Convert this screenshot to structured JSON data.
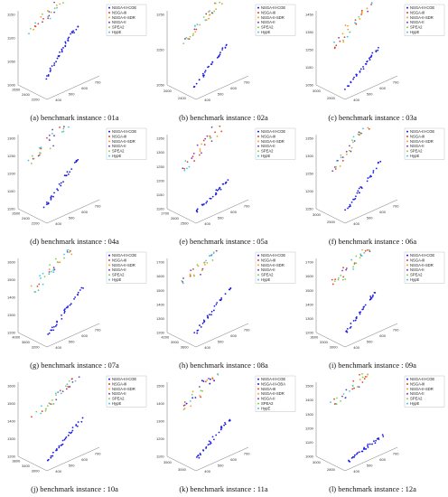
{
  "colors": {
    "NSGA-III-COE": "#1a1ae6",
    "NSGA-III-OBA": "#1a1ae6",
    "NSGA-Ⅲ": "#e8402a",
    "NSGA-II-SDR": "#f0a020",
    "NSGA-II": "#7d3fb0",
    "SPEA2": "#7fd050",
    "HypE": "#3fc8e8",
    "axis": "#777777"
  },
  "chart_data": [
    {
      "type": "scatter3d",
      "caption": "(a)  benchmark instance : 01a",
      "legend": [
        "NSGA-III-COE",
        "NSGA-Ⅲ",
        "NSGA-II-SDR",
        "NSGA-II",
        "SPEA2",
        "HypE"
      ],
      "zticks": [
        "1000",
        "1050",
        "1100",
        "1150"
      ],
      "yticks": [
        "2600",
        "2400",
        "2200"
      ],
      "xticks": [
        "400",
        "500",
        "600",
        "700"
      ],
      "zrange": [
        980,
        1170
      ],
      "yrange": [
        2100,
        2700
      ],
      "xrange": [
        380,
        720
      ],
      "front": [
        [
          430,
          2300,
          1010
        ],
        [
          470,
          2310,
          1030
        ],
        [
          520,
          2330,
          1045
        ],
        [
          560,
          2350,
          1060
        ],
        [
          600,
          2380,
          1075
        ],
        [
          640,
          2400,
          1085
        ],
        [
          680,
          2420,
          1095
        ]
      ],
      "cloud": [
        [
          420,
          2550,
          1120
        ],
        [
          480,
          2560,
          1130
        ],
        [
          540,
          2580,
          1140
        ],
        [
          600,
          2600,
          1150
        ],
        [
          660,
          2620,
          1160
        ],
        [
          700,
          2640,
          1165
        ]
      ]
    },
    {
      "type": "scatter3d",
      "caption": "(b)  benchmark instance : 02a",
      "legend": [
        "NSGA-III-COE",
        "NSGA-Ⅲ",
        "NSGA-II-SDR",
        "NSGA-II",
        "SPEA2",
        "HypE"
      ],
      "zticks": [
        "1050",
        "1150",
        "1250"
      ],
      "yticks": [
        "2600",
        "2400"
      ],
      "xticks": [
        "400",
        "500",
        "600",
        "700"
      ],
      "zrange": [
        1000,
        1300
      ],
      "yrange": [
        2300,
        2800
      ],
      "xrange": [
        380,
        720
      ],
      "front": [
        [
          420,
          2450,
          1020
        ],
        [
          470,
          2460,
          1040
        ],
        [
          520,
          2480,
          1060
        ],
        [
          570,
          2500,
          1080
        ],
        [
          620,
          2520,
          1095
        ],
        [
          680,
          2550,
          1110
        ]
      ],
      "cloud": [
        [
          420,
          2600,
          1180
        ],
        [
          480,
          2620,
          1200
        ],
        [
          540,
          2640,
          1220
        ],
        [
          600,
          2660,
          1240
        ],
        [
          660,
          2680,
          1260
        ],
        [
          710,
          2700,
          1280
        ]
      ]
    },
    {
      "type": "scatter3d",
      "caption": "(c)  benchmark instance : 03a",
      "legend": [
        "NSGA-III-COE",
        "NSGA-Ⅲ",
        "NSGA-II-SDR",
        "NSGA-II",
        "SPEA2",
        "HypE"
      ],
      "zticks": [
        "1050",
        "1150",
        "1250",
        "1350",
        "1450"
      ],
      "yticks": [
        "3000",
        "2500"
      ],
      "xticks": [
        "400",
        "500",
        "600",
        "700"
      ],
      "zrange": [
        1000,
        1480
      ],
      "yrange": [
        2300,
        3100
      ],
      "xrange": [
        380,
        720
      ],
      "front": [
        [
          420,
          2450,
          1030
        ],
        [
          470,
          2480,
          1060
        ],
        [
          520,
          2510,
          1090
        ],
        [
          570,
          2540,
          1120
        ],
        [
          620,
          2570,
          1150
        ],
        [
          680,
          2600,
          1180
        ]
      ],
      "cloud": [
        [
          420,
          2800,
          1250
        ],
        [
          480,
          2830,
          1280
        ],
        [
          540,
          2860,
          1320
        ],
        [
          600,
          2890,
          1360
        ],
        [
          660,
          2920,
          1400
        ],
        [
          710,
          2950,
          1440
        ]
      ]
    },
    {
      "type": "scatter3d",
      "caption": "(d)  benchmark instance : 04a",
      "legend": [
        "NSGA-III-COE",
        "NSGA-Ⅲ",
        "NSGA-II-SDR",
        "NSGA-II",
        "SPEA2",
        "HypE"
      ],
      "zticks": [
        "1100",
        "1150",
        "1200",
        "1250",
        "1300"
      ],
      "yticks": [
        "2600",
        "2400",
        "2200"
      ],
      "xticks": [
        "400",
        "500",
        "600",
        "700"
      ],
      "zrange": [
        1080,
        1320
      ],
      "yrange": [
        2100,
        2700
      ],
      "xrange": [
        380,
        720
      ],
      "front": [
        [
          420,
          2300,
          1100
        ],
        [
          470,
          2320,
          1120
        ],
        [
          520,
          2340,
          1140
        ],
        [
          570,
          2360,
          1160
        ],
        [
          620,
          2380,
          1180
        ],
        [
          680,
          2400,
          1200
        ]
      ],
      "cloud": [
        [
          420,
          2550,
          1230
        ],
        [
          480,
          2570,
          1250
        ],
        [
          540,
          2590,
          1260
        ],
        [
          600,
          2610,
          1280
        ],
        [
          660,
          2630,
          1290
        ],
        [
          710,
          2650,
          1310
        ]
      ]
    },
    {
      "type": "scatter3d",
      "caption": "(e)  benchmark instance : 05a",
      "legend": [
        "NSGA-III-COE",
        "NSGA-Ⅲ",
        "NSGA-II-SDR",
        "NSGA-II",
        "SPEA2",
        "HypE"
      ],
      "zticks": [
        "1100",
        "1150",
        "1200",
        "1250",
        "1300",
        "1350"
      ],
      "yticks": [
        "2700",
        "2600",
        "2500"
      ],
      "xticks": [
        "400",
        "500",
        "600",
        "700"
      ],
      "zrange": [
        1080,
        1370
      ],
      "yrange": [
        2450,
        2750
      ],
      "xrange": [
        380,
        720
      ],
      "front": [
        [
          420,
          2520,
          1100
        ],
        [
          470,
          2530,
          1110
        ],
        [
          520,
          2540,
          1120
        ],
        [
          570,
          2550,
          1130
        ],
        [
          620,
          2560,
          1140
        ],
        [
          680,
          2570,
          1150
        ]
      ],
      "cloud": [
        [
          420,
          2650,
          1240
        ],
        [
          480,
          2660,
          1260
        ],
        [
          540,
          2670,
          1280
        ],
        [
          600,
          2680,
          1300
        ],
        [
          660,
          2690,
          1320
        ],
        [
          710,
          2700,
          1340
        ]
      ]
    },
    {
      "type": "scatter3d",
      "caption": "(f)  benchmark instance : 06a",
      "legend": [
        "NSGA-III-COE",
        "NSGA-Ⅲ",
        "NSGA-II-SDR",
        "NSGA-II",
        "SPEA2",
        "HypE"
      ],
      "zticks": [
        "1150",
        "1200",
        "1250",
        "1300",
        "1350"
      ],
      "yticks": [
        "3000",
        "2500"
      ],
      "xticks": [
        "400",
        "500",
        "600",
        "700"
      ],
      "zrange": [
        1120,
        1370
      ],
      "yrange": [
        2300,
        3100
      ],
      "xrange": [
        380,
        720
      ],
      "front": [
        [
          420,
          2450,
          1140
        ],
        [
          470,
          2480,
          1160
        ],
        [
          520,
          2510,
          1180
        ],
        [
          570,
          2540,
          1200
        ],
        [
          620,
          2570,
          1220
        ],
        [
          680,
          2600,
          1240
        ]
      ],
      "cloud": [
        [
          420,
          2800,
          1260
        ],
        [
          480,
          2830,
          1280
        ],
        [
          540,
          2860,
          1300
        ],
        [
          600,
          2890,
          1320
        ],
        [
          660,
          2920,
          1340
        ],
        [
          710,
          2950,
          1360
        ]
      ]
    },
    {
      "type": "scatter3d",
      "caption": "(g)  benchmark instance : 07a",
      "legend": [
        "NSGA-III-COE",
        "NSGA-Ⅲ",
        "NSGA-II-SDR",
        "NSGA-II",
        "SPEA2",
        "HypE"
      ],
      "zticks": [
        "1200",
        "1300",
        "1400",
        "1500",
        "1600"
      ],
      "yticks": [
        "4000",
        "3600",
        "3200"
      ],
      "xticks": [
        "400",
        "500",
        "600",
        "700"
      ],
      "zrange": [
        1150,
        1650
      ],
      "yrange": [
        3100,
        4100
      ],
      "xrange": [
        380,
        720
      ],
      "front": [
        [
          420,
          3300,
          1180
        ],
        [
          470,
          3330,
          1220
        ],
        [
          520,
          3360,
          1260
        ],
        [
          570,
          3390,
          1300
        ],
        [
          620,
          3420,
          1340
        ],
        [
          680,
          3450,
          1380
        ]
      ],
      "cloud": [
        [
          420,
          3800,
          1450
        ],
        [
          480,
          3830,
          1480
        ],
        [
          540,
          3860,
          1510
        ],
        [
          600,
          3890,
          1540
        ],
        [
          660,
          3920,
          1570
        ],
        [
          710,
          3950,
          1600
        ]
      ]
    },
    {
      "type": "scatter3d",
      "caption": "(h)  benchmark instance : 08a",
      "legend": [
        "NSGA-III-COE",
        "NSGA-Ⅲ",
        "NSGA-II-SDR",
        "NSGA-II",
        "SPEA2",
        "HypE"
      ],
      "zticks": [
        "1200",
        "1300",
        "1400",
        "1500",
        "1600",
        "1700"
      ],
      "yticks": [
        "4200",
        "3900",
        "3600"
      ],
      "xticks": [
        "400",
        "500",
        "600",
        "700"
      ],
      "zrange": [
        1150,
        1750
      ],
      "yrange": [
        3500,
        4300
      ],
      "xrange": [
        380,
        720
      ],
      "front": [
        [
          420,
          3700,
          1200
        ],
        [
          470,
          3730,
          1240
        ],
        [
          520,
          3760,
          1280
        ],
        [
          570,
          3790,
          1320
        ],
        [
          620,
          3820,
          1360
        ],
        [
          680,
          3850,
          1400
        ]
      ],
      "cloud": [
        [
          420,
          4000,
          1560
        ],
        [
          480,
          4030,
          1590
        ],
        [
          540,
          4060,
          1620
        ],
        [
          600,
          4090,
          1650
        ],
        [
          660,
          4120,
          1680
        ],
        [
          710,
          4150,
          1710
        ]
      ]
    },
    {
      "type": "scatter3d",
      "caption": "(i)  benchmark instance : 09a",
      "legend": [
        "NSGA-III-COE",
        "NSGA-Ⅲ",
        "NSGA-II-SDR",
        "NSGA-II",
        "SPEA2",
        "HypE"
      ],
      "zticks": [
        "1200",
        "1300",
        "1400",
        "1500",
        "1600",
        "1700"
      ],
      "yticks": [
        "3600",
        "3300",
        "3000"
      ],
      "xticks": [
        "400",
        "500",
        "600",
        "700"
      ],
      "zrange": [
        1150,
        1750
      ],
      "yrange": [
        2900,
        3700
      ],
      "xrange": [
        380,
        720
      ],
      "front": [
        [
          420,
          3100,
          1200
        ],
        [
          470,
          3130,
          1240
        ],
        [
          520,
          3160,
          1280
        ],
        [
          570,
          3190,
          1320
        ],
        [
          620,
          3220,
          1360
        ],
        [
          680,
          3250,
          1400
        ]
      ],
      "cloud": [
        [
          420,
          3400,
          1560
        ],
        [
          480,
          3430,
          1590
        ],
        [
          540,
          3460,
          1620
        ],
        [
          600,
          3490,
          1650
        ],
        [
          660,
          3520,
          1680
        ],
        [
          710,
          3550,
          1710
        ]
      ]
    },
    {
      "type": "scatter3d",
      "caption": "(j)  benchmark instance : 10a",
      "legend": [
        "NSGA-III-COE",
        "NSGA-Ⅲ",
        "NSGA-II-SDR",
        "NSGA-II",
        "SPEA2",
        "HypE"
      ],
      "zticks": [
        "1200",
        "1300",
        "1400",
        "1500",
        "1600"
      ],
      "yticks": [
        "3800",
        "3400",
        "3000"
      ],
      "xticks": [
        "400",
        "500",
        "600",
        "700"
      ],
      "zrange": [
        1150,
        1650
      ],
      "yrange": [
        2900,
        3900
      ],
      "xrange": [
        380,
        720
      ],
      "front": [
        [
          420,
          3100,
          1180
        ],
        [
          470,
          3130,
          1210
        ],
        [
          520,
          3160,
          1240
        ],
        [
          570,
          3190,
          1270
        ],
        [
          620,
          3220,
          1300
        ],
        [
          680,
          3250,
          1330
        ]
      ],
      "cloud": [
        [
          420,
          3500,
          1430
        ],
        [
          480,
          3530,
          1460
        ],
        [
          540,
          3560,
          1490
        ],
        [
          600,
          3590,
          1520
        ],
        [
          660,
          3620,
          1550
        ],
        [
          710,
          3650,
          1580
        ]
      ]
    },
    {
      "type": "scatter3d",
      "caption": "(k)  benchmark instance : 11a",
      "legend": [
        "NSGA-III-COE",
        "NSGA-III-OBA",
        "NSGA-Ⅲ",
        "NSGA-II-SDR",
        "NSGA-II",
        "SPEA2",
        "HypE"
      ],
      "zticks": [
        "1100",
        "1200",
        "1300",
        "1400",
        "1500"
      ],
      "yticks": [
        "3500",
        "3000"
      ],
      "xticks": [
        "400",
        "500",
        "600",
        "700"
      ],
      "zrange": [
        1050,
        1550
      ],
      "yrange": [
        2800,
        3700
      ],
      "xrange": [
        380,
        720
      ],
      "front": [
        [
          420,
          3000,
          1080
        ],
        [
          470,
          3030,
          1110
        ],
        [
          520,
          3060,
          1140
        ],
        [
          570,
          3090,
          1170
        ],
        [
          620,
          3120,
          1200
        ],
        [
          680,
          3150,
          1230
        ]
      ],
      "cloud": [
        [
          420,
          3400,
          1380
        ],
        [
          480,
          3430,
          1410
        ],
        [
          540,
          3460,
          1440
        ],
        [
          600,
          3490,
          1470
        ],
        [
          660,
          3520,
          1490
        ],
        [
          710,
          3550,
          1510
        ]
      ]
    },
    {
      "type": "scatter3d",
      "caption": "(l)  benchmark instance : 12a",
      "legend": [
        "NSGA-III-COE",
        "NSGA-Ⅲ",
        "NSGA-II-SDR",
        "NSGA-II",
        "SPEA2",
        "HypE"
      ],
      "zticks": [
        "1000",
        "1100",
        "1200",
        "1300",
        "1400",
        "1500"
      ],
      "yticks": [
        "3000",
        "2800"
      ],
      "xticks": [
        "400",
        "500",
        "600",
        "700"
      ],
      "zrange": [
        950,
        1550
      ],
      "yrange": [
        2700,
        3100
      ],
      "xrange": [
        380,
        720
      ],
      "front": [
        [
          420,
          2750,
          990
        ],
        [
          470,
          2760,
          1000
        ],
        [
          520,
          2770,
          1010
        ],
        [
          570,
          2780,
          1020
        ],
        [
          620,
          2790,
          1030
        ],
        [
          680,
          2800,
          1040
        ]
      ],
      "cloud": [
        [
          420,
          2950,
          1380
        ],
        [
          480,
          2960,
          1410
        ],
        [
          540,
          2970,
          1440
        ],
        [
          600,
          2980,
          1470
        ],
        [
          660,
          2990,
          1490
        ],
        [
          710,
          3000,
          1510
        ]
      ]
    }
  ]
}
